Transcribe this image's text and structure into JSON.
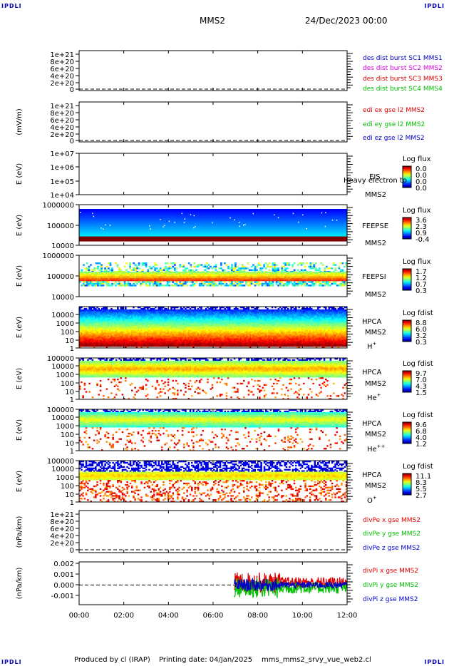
{
  "corners": {
    "tl": "IPDLI",
    "tr": "IPDLI",
    "bl": "IPDLI",
    "br": "IPDLI"
  },
  "header": {
    "spacecraft": "MMS2",
    "date": "24/Dec/2023 00:00"
  },
  "footer": {
    "produced": "Produced by cl (IRAP)",
    "printing": "Printing date: 04/Jan/2025",
    "file": "mms_mms2_srvy_vue_web2.cl"
  },
  "chart_data": {
    "type": "multi-panel time series / spectrogram",
    "x_ticks": [
      "00:00",
      "02:00",
      "04:00",
      "06:00",
      "08:00",
      "10:00",
      "12:00"
    ],
    "x_range_hours": [
      0,
      12
    ],
    "panels": [
      {
        "id": "des",
        "kind": "line",
        "ylabel": "",
        "ytick_labels": [
          "1e+21",
          "8e+20",
          "6e+20",
          "4e+20",
          "2e+20",
          "0"
        ],
        "ytick_values": [
          1e+21,
          8e+20,
          6e+20,
          4e+20,
          2e+20,
          0
        ],
        "legend": [
          {
            "text": "des dist burst SC1 MMS1",
            "color": "#0000c8"
          },
          {
            "text": "des dist burst SC2 MMS2",
            "color": "#e000e0"
          },
          {
            "text": "des dist burst SC3 MMS3",
            "color": "#e00000"
          },
          {
            "text": "des dist burst SC4 MMS4",
            "color": "#00c000"
          }
        ]
      },
      {
        "id": "edi",
        "kind": "line",
        "ylabel": "(mV/m)",
        "ytick_labels": [
          "1e+21",
          "8e+20",
          "6e+20",
          "4e+20",
          "2e+20",
          "0"
        ],
        "ytick_values": [
          1e+21,
          8e+20,
          6e+20,
          4e+20,
          2e+20,
          0
        ],
        "legend": [
          {
            "text": "edi ex gse l2 MMS2",
            "color": "#e00000"
          },
          {
            "text": "edi ey gse l2 MMS2",
            "color": "#00c000"
          },
          {
            "text": "edi ez gse l2 MMS2",
            "color": "#0000c8"
          }
        ]
      },
      {
        "id": "eis",
        "kind": "spectrogram",
        "ylabel": "E (eV)",
        "ytick_labels": [
          "1e+07",
          "1e+06",
          "1e+05",
          "1e+04"
        ],
        "ytick_values": [
          10000000.0,
          1000000.0,
          100000.0,
          10000.0
        ],
        "instrument": "EIS",
        "sc": "MMS2",
        "overlay": "Heavy electron to",
        "cbar_title": "Log flux",
        "cbar_labels": [
          "0.0",
          "0.0",
          "0.0",
          "0.0"
        ]
      },
      {
        "id": "feepse",
        "kind": "spectrogram",
        "ylabel": "E (eV)",
        "ytick_labels": [
          "1000000",
          "100000",
          "10000"
        ],
        "ytick_values": [
          1000000,
          100000,
          10000
        ],
        "instrument": "FEEPSE",
        "sc": "MMS2",
        "cbar_title": "Log flux",
        "cbar_labels": [
          "3.6",
          "2.3",
          "0.9",
          "-0.4"
        ]
      },
      {
        "id": "feepsi",
        "kind": "spectrogram",
        "ylabel": "E (eV)",
        "ytick_labels": [
          "1000000",
          "100000",
          "10000"
        ],
        "ytick_values": [
          1000000,
          100000,
          10000
        ],
        "instrument": "FEEPSI",
        "sc": "MMS2",
        "cbar_title": "Log flux",
        "cbar_labels": [
          "1.7",
          "1.2",
          "0.7",
          "0.3"
        ]
      },
      {
        "id": "hpca_h",
        "kind": "spectrogram",
        "ylabel": "E (eV)",
        "ytick_labels": [
          "10000",
          "1000",
          "100",
          "10",
          "1"
        ],
        "ytick_values": [
          10000,
          1000,
          100,
          10,
          1
        ],
        "instrument": "HPCA",
        "sc": "MMS2",
        "species": "H",
        "charge": "+",
        "cbar_title": "Log fdist",
        "cbar_labels": [
          "8.8",
          "6.0",
          "3.2",
          "0.3"
        ]
      },
      {
        "id": "hpca_he1",
        "kind": "spectrogram",
        "ylabel": "E (eV)",
        "ytick_labels": [
          "100000",
          "10000",
          "1000",
          "100",
          "10",
          "1"
        ],
        "ytick_values": [
          100000,
          10000,
          1000,
          100,
          10,
          1
        ],
        "instrument": "HPCA",
        "sc": "MMS2",
        "species": "He",
        "charge": "+",
        "cbar_title": "Log fdist",
        "cbar_labels": [
          "9.7",
          "7.0",
          "4.3",
          "1.5"
        ]
      },
      {
        "id": "hpca_he2",
        "kind": "spectrogram",
        "ylabel": "E (eV)",
        "ytick_labels": [
          "100000",
          "10000",
          "1000",
          "100",
          "10",
          "1"
        ],
        "ytick_values": [
          100000,
          10000,
          1000,
          100,
          10,
          1
        ],
        "instrument": "HPCA",
        "sc": "MMS2",
        "species": "He",
        "charge": "++",
        "cbar_title": "Log fdist",
        "cbar_labels": [
          "9.6",
          "6.8",
          "4.0",
          "1.2"
        ]
      },
      {
        "id": "hpca_o",
        "kind": "spectrogram",
        "ylabel": "E (eV)",
        "ytick_labels": [
          "100000",
          "10000",
          "1000",
          "100",
          "10",
          "1"
        ],
        "ytick_values": [
          100000,
          10000,
          1000,
          100,
          10,
          1
        ],
        "instrument": "HPCA",
        "sc": "MMS2",
        "species": "O",
        "charge": "+",
        "cbar_title": "Log fdist",
        "cbar_labels": [
          "11.1",
          "8.3",
          "5.5",
          "2.7"
        ]
      },
      {
        "id": "divpe",
        "kind": "line",
        "ylabel": "(nPa/km)",
        "ytick_labels": [
          "1e+21",
          "8e+20",
          "6e+20",
          "4e+20",
          "2e+20",
          "0"
        ],
        "ytick_values": [
          1e+21,
          8e+20,
          6e+20,
          4e+20,
          2e+20,
          0
        ],
        "legend": [
          {
            "text": "divPe x gse MMS2",
            "color": "#e00000"
          },
          {
            "text": "divPe y gse MMS2",
            "color": "#00c000"
          },
          {
            "text": "divPe z gse MMS2",
            "color": "#0000c8"
          }
        ]
      },
      {
        "id": "divpi",
        "kind": "line",
        "ylabel": "(nPa/km)",
        "ytick_labels": [
          "0.002",
          "0.001",
          "0.000",
          "-0.001"
        ],
        "ytick_values": [
          0.002,
          0.001,
          0.0,
          -0.001
        ],
        "ylim": [
          -0.0017,
          0.002
        ],
        "data_start_hour": 6.95,
        "legend": [
          {
            "text": "divPi x gse MMS2",
            "color": "#e00000"
          },
          {
            "text": "divPi y gse MMS2",
            "color": "#00c000"
          },
          {
            "text": "divPi z gse MMS2",
            "color": "#0000c8"
          }
        ]
      }
    ]
  }
}
